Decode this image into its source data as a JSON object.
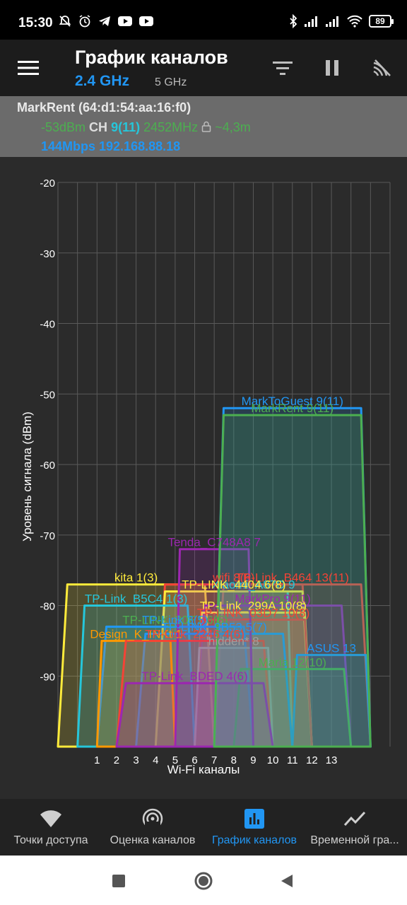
{
  "status": {
    "time": "15:30",
    "battery": "89"
  },
  "app_bar": {
    "title": "График каналов",
    "band_active": "2.4 GHz",
    "band_inactive": "5 GHz"
  },
  "connection": {
    "name": "MarkRent (64:d1:54:aa:16:f0)",
    "signal": "-53dBm",
    "ch_label": "CH",
    "channel": "9(11)",
    "frequency": "2452MHz",
    "distance": "~4,3m",
    "speed_ip": "144Mbps 192.168.88.18"
  },
  "chart_data": {
    "type": "area",
    "ylabel": "Уровень сигнала (dBm)",
    "xlabel": "Wi-Fi каналы",
    "ylim": [
      -100,
      -20
    ],
    "y_ticks": [
      -20,
      -30,
      -40,
      -50,
      -60,
      -70,
      -80,
      -90
    ],
    "x_ticks": [
      "1",
      "2",
      "3",
      "4",
      "5",
      "6",
      "7",
      "8",
      "9",
      "10",
      "11",
      "12",
      "13"
    ],
    "grid": true,
    "series": [
      {
        "name": "kita 1(3)",
        "low": -1,
        "high": 7,
        "level": -77,
        "color": "#ffeb3b"
      },
      {
        "name": "wifi 8(6)",
        "low": 4,
        "high": 12,
        "level": -77,
        "color": "#f44336"
      },
      {
        "name": "TP-Link_B464 13(11)",
        "low": 7,
        "high": 15,
        "level": -77,
        "color": "#f44336"
      },
      {
        "name": "Xiaomi_A87D 9",
        "low": 7,
        "high": 11,
        "level": -78,
        "color": "#26c6da"
      },
      {
        "name": "TP-LINK_4404 6(8)",
        "low": 4,
        "high": 12,
        "level": -78,
        "color": "#ffeb3b"
      },
      {
        "name": "TP-Link_B5C4 1(3)",
        "low": 0,
        "high": 6,
        "level": -80,
        "color": "#26c6da"
      },
      {
        "name": "MarkPro 9(11)",
        "low": 6,
        "high": 14,
        "level": -80,
        "color": "#9c27b0"
      },
      {
        "name": "TP-Link_299A 10(8)",
        "low": 6,
        "high": 12,
        "level": -81,
        "color": "#ffeb3b"
      },
      {
        "name": "TP-LINK_03D7 10(8)",
        "low": 6,
        "high": 12,
        "level": -82,
        "color": "#f44336"
      },
      {
        "name": "TP-LINK_80E1 6(5)",
        "low": 1,
        "high": 9,
        "level": -83,
        "color": "#4caf50"
      },
      {
        "name": "TP-Link 3(5)",
        "low": 1,
        "high": 9,
        "level": -83,
        "color": "#2196f3"
      },
      {
        "name": "TP-LINK_9B53 5(7)",
        "low": 3,
        "high": 11,
        "level": -84,
        "color": "#2196f3"
      },
      {
        "name": "Design_K_INKt 1",
        "low": 1,
        "high": 5,
        "level": -85,
        "color": "#ff9800"
      },
      {
        "name": "TP-Link_2246 4(6)",
        "low": 2,
        "high": 10,
        "level": -85,
        "color": "#f44336"
      },
      {
        "name": "hidden* 8",
        "low": 6,
        "high": 10,
        "level": -86,
        "color": "#9e9e9e"
      },
      {
        "name": "ASUS 13",
        "low": 11,
        "high": 15,
        "level": -87,
        "color": "#2196f3"
      },
      {
        "name": "Maria 12(10)",
        "low": 8,
        "high": 14,
        "level": -89,
        "color": "#4caf50"
      },
      {
        "name": "TP-Link_BDED 4(6)",
        "low": 2,
        "high": 10,
        "level": -91,
        "color": "#9c27b0"
      },
      {
        "name": "Tenda_C748A8 7",
        "low": 5,
        "high": 9,
        "level": -72,
        "color": "#9c27b0"
      },
      {
        "name": "MarkToGuest 9(11)",
        "low": 7,
        "high": 15,
        "level": -52,
        "color": "#2196f3"
      },
      {
        "name": "MarkRent 9(11)",
        "low": 7,
        "high": 15,
        "level": -53,
        "color": "#4caf50"
      }
    ]
  },
  "bottom_nav": {
    "items": [
      {
        "label": "Точки доступа"
      },
      {
        "label": "Оценка каналов"
      },
      {
        "label": "График каналов"
      },
      {
        "label": "Временной гра..."
      }
    ]
  }
}
